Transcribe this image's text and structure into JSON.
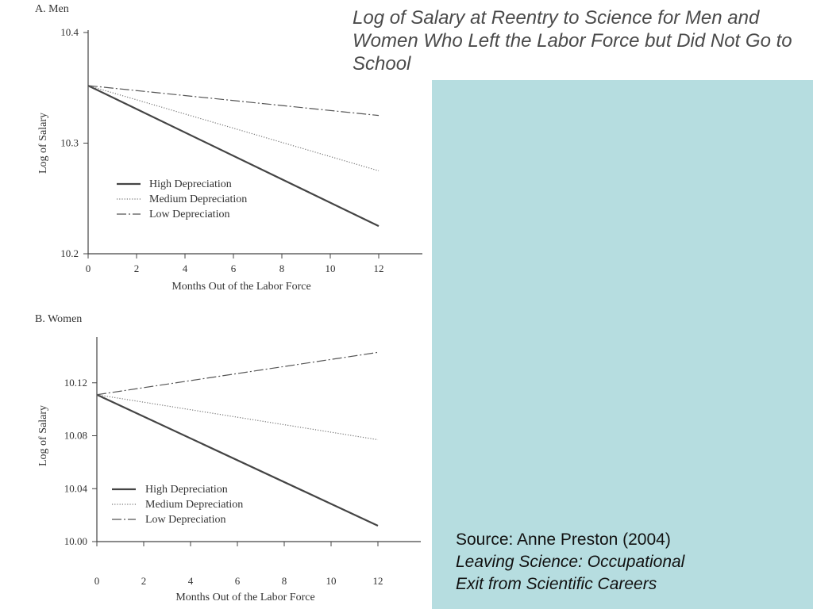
{
  "slide": {
    "title": "Log of Salary at Reentry to Science for Men and Women Who Left the Labor Force but Did Not Go to School",
    "source_line1": "Source: Anne Preston (2004)",
    "source_line2": "Leaving Science: Occupational",
    "source_line3": "Exit from Scientific Careers",
    "panel_color": "#b6dde0"
  },
  "chart_data": [
    {
      "type": "line",
      "title": "A. Men",
      "xlabel": "Months Out of the Labor Force",
      "ylabel": "Log of Salary",
      "xlim": [
        0,
        14
      ],
      "ylim": [
        10.2,
        10.4
      ],
      "xticks": [
        0,
        2,
        4,
        6,
        8,
        10,
        12
      ],
      "yticks": [
        10.2,
        10.3,
        10.4
      ],
      "ytick_labels": [
        "10.2",
        "10.3",
        "10.4"
      ],
      "legend_position": "middle-left",
      "series": [
        {
          "name": "High Depreciation",
          "style": "solid",
          "x": [
            0,
            12
          ],
          "y": [
            10.352,
            10.225
          ]
        },
        {
          "name": "Medium Depreciation",
          "style": "dotted",
          "x": [
            0,
            12
          ],
          "y": [
            10.352,
            10.275
          ]
        },
        {
          "name": "Low Depreciation",
          "style": "dashdot",
          "x": [
            0,
            12
          ],
          "y": [
            10.352,
            10.325
          ]
        }
      ]
    },
    {
      "type": "line",
      "title": "B. Women",
      "xlabel": "Months Out of the Labor Force",
      "ylabel": "Log of Salary",
      "xlim": [
        0,
        14
      ],
      "ylim": [
        10.0,
        10.16
      ],
      "xticks": [
        0,
        2,
        4,
        6,
        8,
        10,
        12
      ],
      "yticks": [
        10.0,
        10.04,
        10.08,
        10.12
      ],
      "ytick_labels": [
        "10.00",
        "10.04",
        "10.08",
        "10.12"
      ],
      "legend_position": "bottom-left",
      "series": [
        {
          "name": "High Depreciation",
          "style": "solid",
          "x": [
            0,
            12
          ],
          "y": [
            10.111,
            10.012
          ]
        },
        {
          "name": "Medium Depreciation",
          "style": "dotted",
          "x": [
            0,
            12
          ],
          "y": [
            10.111,
            10.077
          ]
        },
        {
          "name": "Low Depreciation",
          "style": "dashdot",
          "x": [
            0,
            12
          ],
          "y": [
            10.111,
            10.143
          ]
        }
      ]
    }
  ]
}
